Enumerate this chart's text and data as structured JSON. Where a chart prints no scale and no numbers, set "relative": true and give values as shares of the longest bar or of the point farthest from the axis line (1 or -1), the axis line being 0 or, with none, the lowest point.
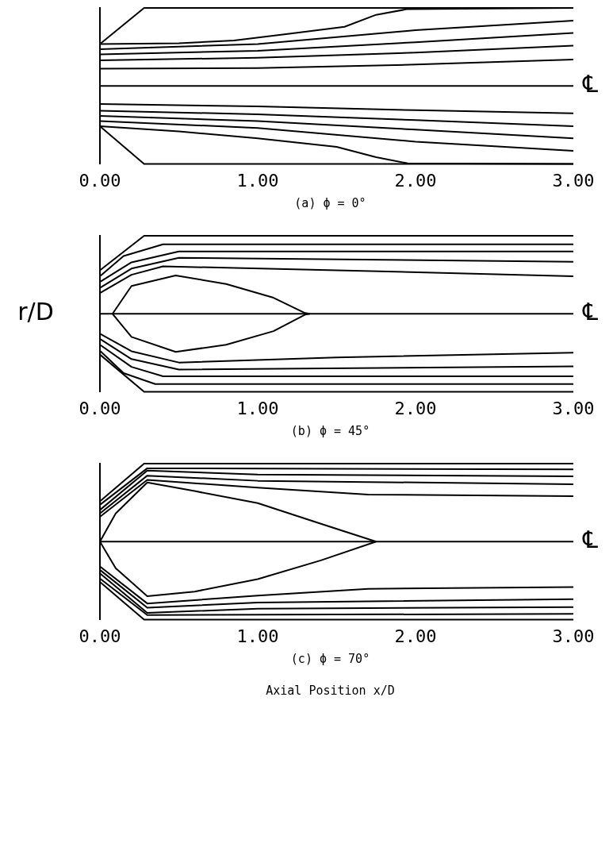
{
  "chart_data": [
    {
      "type": "line",
      "title": "(a)  ϕ = 0°",
      "relative": true,
      "xlim": [
        0,
        3
      ],
      "xticks": [
        {
          "value": 0,
          "label": "0.00"
        },
        {
          "value": 1,
          "label": "1.00"
        },
        {
          "value": 2,
          "label": "2.00"
        },
        {
          "value": 3,
          "label": "3.00"
        }
      ],
      "tick_labels": "x",
      "grid": false,
      "legend": false,
      "marker": "none",
      "line_style": "solid",
      "annotations": [
        "℄"
      ],
      "series": [
        {
          "color": "#000000",
          "x": [
            0,
            0.28,
            3
          ],
          "values": [
            0.769,
            1,
            1
          ]
        },
        {
          "color": "#000000",
          "x": [
            0,
            0.5,
            0.85,
            1.2,
            1.55,
            1.75,
            1.95,
            3
          ],
          "values": [
            0.769,
            0.774,
            0.791,
            0.835,
            0.879,
            0.956,
            0.993,
            1
          ]
        },
        {
          "color": "#000000",
          "x": [
            0,
            1,
            2,
            3
          ],
          "values": [
            0.736,
            0.769,
            0.857,
            0.919
          ]
        },
        {
          "color": "#000000",
          "x": [
            0,
            1,
            2,
            3
          ],
          "values": [
            0.703,
            0.725,
            0.78,
            0.84
          ]
        },
        {
          "color": "#000000",
          "x": [
            0,
            1,
            2,
            3
          ],
          "values": [
            0.664,
            0.681,
            0.714,
            0.758
          ]
        },
        {
          "color": "#000000",
          "x": [
            0,
            1,
            2,
            3
          ],
          "values": [
            0.611,
            0.615,
            0.637,
            0.67
          ]
        },
        {
          "color": "#000000",
          "x": [
            0,
            3
          ],
          "values": [
            0.5,
            0.5
          ]
        },
        {
          "color": "#000000",
          "x": [
            0,
            1,
            2,
            3
          ],
          "values": [
            0.385,
            0.369,
            0.345,
            0.325
          ]
        },
        {
          "color": "#000000",
          "x": [
            0,
            1,
            2,
            3
          ],
          "values": [
            0.341,
            0.319,
            0.281,
            0.242
          ]
        },
        {
          "color": "#000000",
          "x": [
            0,
            1,
            2,
            3
          ],
          "values": [
            0.308,
            0.275,
            0.22,
            0.165
          ]
        },
        {
          "color": "#000000",
          "x": [
            0,
            1,
            2,
            3
          ],
          "values": [
            0.275,
            0.231,
            0.143,
            0.084
          ]
        },
        {
          "color": "#000000",
          "x": [
            0,
            0.5,
            1,
            1.5,
            1.75,
            1.95,
            3
          ],
          "values": [
            0.242,
            0.209,
            0.165,
            0.11,
            0.044,
            0.004,
            0
          ]
        },
        {
          "color": "#000000",
          "x": [
            0,
            0.28,
            3
          ],
          "values": [
            0.242,
            0,
            0
          ]
        }
      ]
    },
    {
      "type": "line",
      "title": "(b)  ϕ = 45°",
      "ylabel": "r/D",
      "relative": true,
      "xlim": [
        0,
        3
      ],
      "xticks": [
        {
          "value": 0,
          "label": "0.00"
        },
        {
          "value": 1,
          "label": "1.00"
        },
        {
          "value": 2,
          "label": "2.00"
        },
        {
          "value": 3,
          "label": "3.00"
        }
      ],
      "tick_labels": "x",
      "grid": false,
      "legend": false,
      "marker": "none",
      "line_style": "solid",
      "annotations": [
        "℄"
      ],
      "series": [
        {
          "color": "#000000",
          "x": [
            0,
            0.28,
            3
          ],
          "values": [
            0.779,
            1,
            1
          ]
        },
        {
          "color": "#000000",
          "x": [
            0,
            0.15,
            0.4,
            3
          ],
          "values": [
            0.741,
            0.87,
            0.945,
            0.945
          ]
        },
        {
          "color": "#000000",
          "x": [
            0,
            0.2,
            0.5,
            3
          ],
          "values": [
            0.704,
            0.83,
            0.9,
            0.899
          ]
        },
        {
          "color": "#000000",
          "x": [
            0,
            0.2,
            0.5,
            3
          ],
          "values": [
            0.666,
            0.79,
            0.859,
            0.834
          ]
        },
        {
          "color": "#000000",
          "x": [
            0,
            0.2,
            0.4,
            1.5,
            3
          ],
          "values": [
            0.633,
            0.75,
            0.804,
            0.779,
            0.741
          ]
        },
        {
          "color": "#000000",
          "x": [
            0.08,
            0.2,
            0.48,
            0.8,
            1.1,
            1.3,
            1.33
          ],
          "values": [
            0.5,
            0.678,
            0.746,
            0.691,
            0.603,
            0.505,
            0.5
          ]
        },
        {
          "color": "#000000",
          "x": [
            0,
            3
          ],
          "values": [
            0.5,
            0.5
          ]
        },
        {
          "color": "#000000",
          "x": [
            0.08,
            0.2,
            0.48,
            0.8,
            1.1,
            1.3,
            1.33
          ],
          "values": [
            0.5,
            0.352,
            0.256,
            0.302,
            0.389,
            0.495,
            0.5
          ]
        },
        {
          "color": "#000000",
          "x": [
            0,
            0.2,
            0.5,
            1.5,
            3
          ],
          "values": [
            0.372,
            0.26,
            0.188,
            0.221,
            0.251
          ]
        },
        {
          "color": "#000000",
          "x": [
            0,
            0.2,
            0.5,
            3
          ],
          "values": [
            0.339,
            0.21,
            0.143,
            0.163
          ]
        },
        {
          "color": "#000000",
          "x": [
            0,
            0.2,
            0.4,
            3
          ],
          "values": [
            0.302,
            0.16,
            0.1,
            0.1
          ]
        },
        {
          "color": "#000000",
          "x": [
            0,
            0.15,
            0.35,
            3
          ],
          "values": [
            0.264,
            0.12,
            0.05,
            0.05
          ]
        },
        {
          "color": "#000000",
          "x": [
            0,
            0.28,
            3
          ],
          "values": [
            0.239,
            0,
            0
          ]
        }
      ]
    },
    {
      "type": "line",
      "title": "(c)  ϕ = 70°",
      "xlabel": "Axial Position x/D",
      "relative": true,
      "xlim": [
        0,
        3
      ],
      "xticks": [
        {
          "value": 0,
          "label": "0.00"
        },
        {
          "value": 1,
          "label": "1.00"
        },
        {
          "value": 2,
          "label": "2.00"
        },
        {
          "value": 3,
          "label": "3.00"
        }
      ],
      "tick_labels": "x",
      "grid": false,
      "legend": false,
      "marker": "none",
      "line_style": "solid",
      "annotations": [
        "℄"
      ],
      "series": [
        {
          "color": "#000000",
          "x": [
            0,
            0.28,
            3
          ],
          "values": [
            0.758,
            1,
            1
          ]
        },
        {
          "color": "#000000",
          "x": [
            0,
            0.3,
            3
          ],
          "values": [
            0.736,
            0.97,
            0.963
          ]
        },
        {
          "color": "#000000",
          "x": [
            0,
            0.3,
            1,
            3
          ],
          "values": [
            0.703,
            0.956,
            0.93,
            0.919
          ]
        },
        {
          "color": "#000000",
          "x": [
            0,
            0.3,
            1,
            3
          ],
          "values": [
            0.681,
            0.923,
            0.89,
            0.868
          ]
        },
        {
          "color": "#000000",
          "x": [
            0,
            0.3,
            1,
            1.7,
            3
          ],
          "values": [
            0.659,
            0.896,
            0.846,
            0.802,
            0.791
          ]
        },
        {
          "color": "#000000",
          "x": [
            0,
            0.1,
            0.3,
            0.6,
            1,
            1.4,
            1.75
          ],
          "values": [
            0.5,
            0.681,
            0.879,
            0.824,
            0.747,
            0.615,
            0.5
          ]
        },
        {
          "color": "#000000",
          "x": [
            0,
            3
          ],
          "values": [
            0.5,
            0.5
          ]
        },
        {
          "color": "#000000",
          "x": [
            0,
            0.1,
            0.3,
            0.6,
            1,
            1.4,
            1.75
          ],
          "values": [
            0.5,
            0.33,
            0.15,
            0.18,
            0.26,
            0.38,
            0.5
          ]
        },
        {
          "color": "#000000",
          "x": [
            0,
            0.3,
            1,
            1.7,
            3
          ],
          "values": [
            0.341,
            0.104,
            0.154,
            0.198,
            0.209
          ]
        },
        {
          "color": "#000000",
          "x": [
            0,
            0.3,
            1,
            3
          ],
          "values": [
            0.319,
            0.077,
            0.11,
            0.132
          ]
        },
        {
          "color": "#000000",
          "x": [
            0,
            0.3,
            1,
            3
          ],
          "values": [
            0.297,
            0.044,
            0.07,
            0.081
          ]
        },
        {
          "color": "#000000",
          "x": [
            0,
            0.3,
            3
          ],
          "values": [
            0.264,
            0.03,
            0.037
          ]
        },
        {
          "color": "#000000",
          "x": [
            0,
            0.28,
            3
          ],
          "values": [
            0.242,
            0,
            0
          ]
        }
      ]
    }
  ]
}
